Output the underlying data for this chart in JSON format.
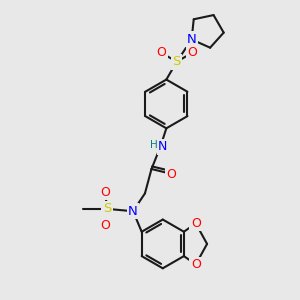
{
  "bg_color": "#e8e8e8",
  "bond_color": "#1a1a1a",
  "bond_width": 1.5,
  "atom_colors": {
    "N": "#0000ff",
    "O": "#ff0000",
    "S": "#cccc00",
    "H": "#008080",
    "C": "#1a1a1a"
  },
  "font_size_atom": 9,
  "font_size_small": 7.5
}
